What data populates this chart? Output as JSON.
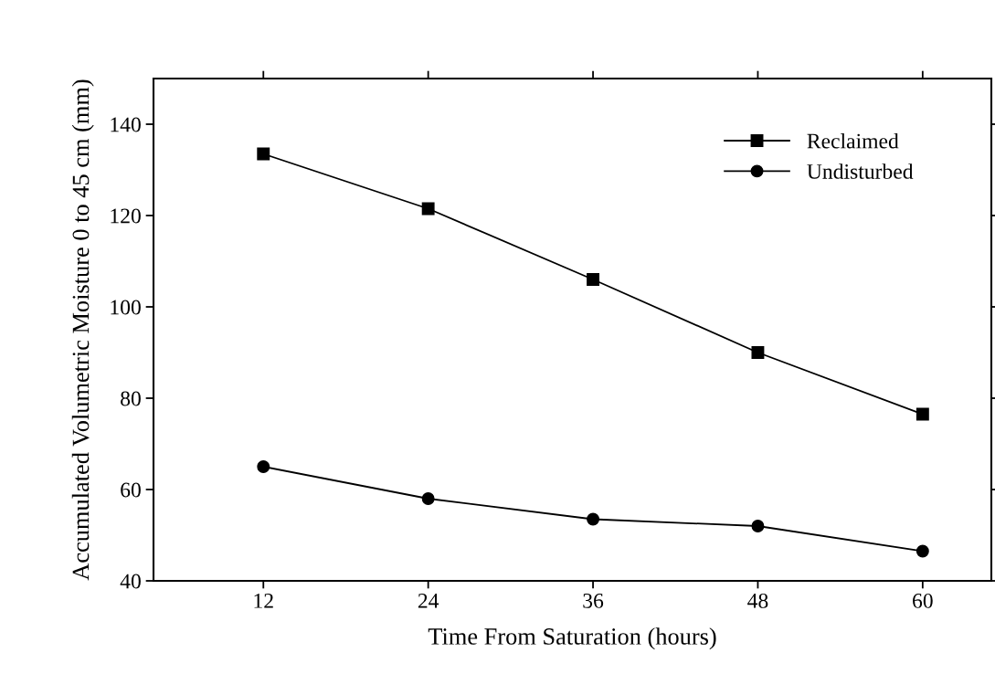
{
  "chart_data": {
    "type": "line",
    "xlabel": "Time From Saturation (hours)",
    "ylabel": "Accumulated Volumetric Moisture 0 to 45 cm (mm)",
    "x": [
      12,
      24,
      36,
      48,
      60
    ],
    "series": [
      {
        "name": "Reclaimed",
        "color": "#000000",
        "marker": "square",
        "values": [
          133.5,
          121.5,
          106,
          90,
          76.5
        ]
      },
      {
        "name": "Undisturbed",
        "color": "#000000",
        "marker": "circle",
        "values": [
          65,
          58,
          53.5,
          52,
          46.5
        ]
      }
    ],
    "xlim": [
      4,
      65
    ],
    "xticks": [
      12,
      24,
      36,
      48,
      60
    ],
    "ylim": [
      40,
      150
    ],
    "yticks": [
      40,
      60,
      80,
      100,
      120,
      140
    ],
    "legend": "top right",
    "grid": false,
    "line_style": "solid"
  }
}
